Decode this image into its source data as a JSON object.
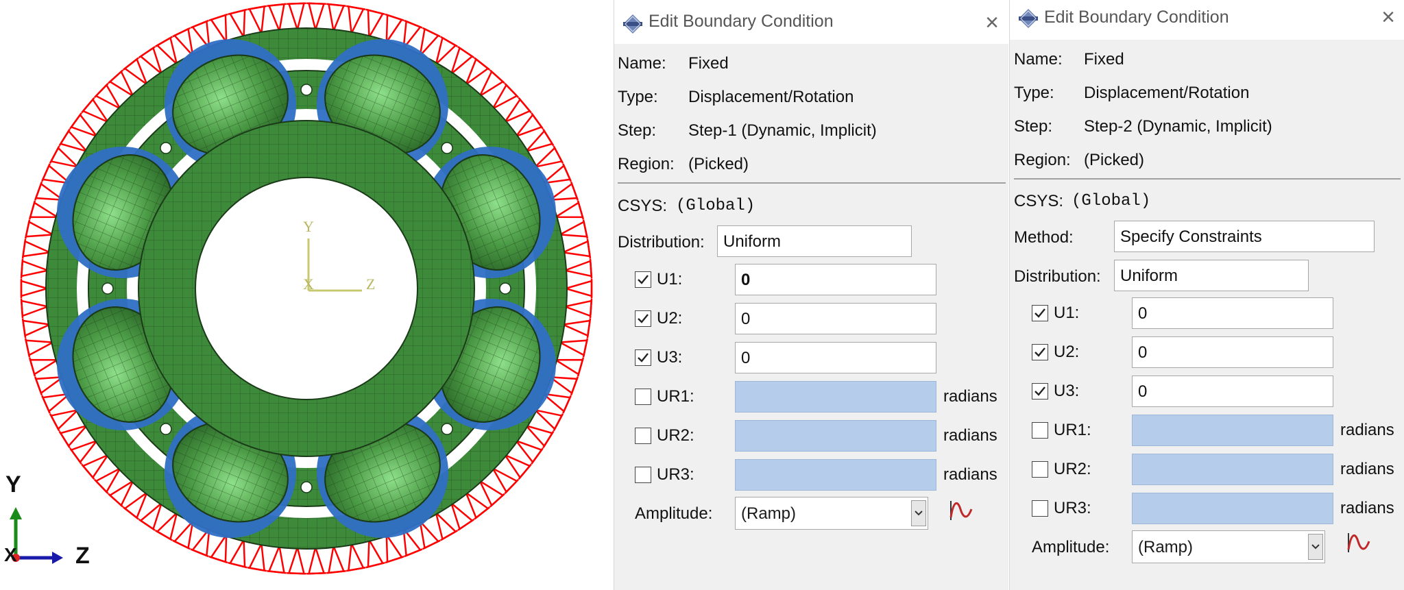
{
  "viewport": {
    "model_triad": {
      "y": "Y",
      "x": "X",
      "z": "Z"
    },
    "global_triad": {
      "y": "Y",
      "x": "X",
      "z": "Z"
    },
    "colors": {
      "mesh": "#3b8a38",
      "bearing_highlight": "#2f6fc4",
      "constraint": "#ff0000"
    }
  },
  "dialogs": [
    {
      "title": "Edit Boundary Condition",
      "name_label": "Name:",
      "name_value": "Fixed",
      "type_label": "Type:",
      "type_value": "Displacement/Rotation",
      "step_label": "Step:",
      "step_value": "Step-1 (Dynamic, Implicit)",
      "region_label": "Region:",
      "region_value": "(Picked)",
      "csys_label": "CSYS:",
      "csys_value": "(Global)",
      "distribution_label": "Distribution:",
      "distribution_value": "Uniform",
      "dofs": [
        {
          "label": "U1:",
          "checked": true,
          "value": "0",
          "unit": ""
        },
        {
          "label": "U2:",
          "checked": true,
          "value": "0",
          "unit": ""
        },
        {
          "label": "U3:",
          "checked": true,
          "value": "0",
          "unit": ""
        },
        {
          "label": "UR1:",
          "checked": false,
          "value": "",
          "unit": "radians"
        },
        {
          "label": "UR2:",
          "checked": false,
          "value": "",
          "unit": "radians"
        },
        {
          "label": "UR3:",
          "checked": false,
          "value": "",
          "unit": "radians"
        }
      ],
      "amplitude_label": "Amplitude:",
      "amplitude_value": "(Ramp)"
    },
    {
      "title": "Edit Boundary Condition",
      "name_label": "Name:",
      "name_value": "Fixed",
      "type_label": "Type:",
      "type_value": "Displacement/Rotation",
      "step_label": "Step:",
      "step_value": "Step-2 (Dynamic, Implicit)",
      "region_label": "Region:",
      "region_value": "(Picked)",
      "csys_label": "CSYS:",
      "csys_value": "(Global)",
      "method_label": "Method:",
      "method_value": "Specify Constraints",
      "distribution_label": "Distribution:",
      "distribution_value": "Uniform",
      "dofs": [
        {
          "label": "U1:",
          "checked": true,
          "value": "0",
          "unit": ""
        },
        {
          "label": "U2:",
          "checked": true,
          "value": "0",
          "unit": ""
        },
        {
          "label": "U3:",
          "checked": true,
          "value": "0",
          "unit": ""
        },
        {
          "label": "UR1:",
          "checked": false,
          "value": "",
          "unit": "radians"
        },
        {
          "label": "UR2:",
          "checked": false,
          "value": "",
          "unit": "radians"
        },
        {
          "label": "UR3:",
          "checked": false,
          "value": "",
          "unit": "radians"
        }
      ],
      "amplitude_label": "Amplitude:",
      "amplitude_value": "(Ramp)"
    }
  ]
}
